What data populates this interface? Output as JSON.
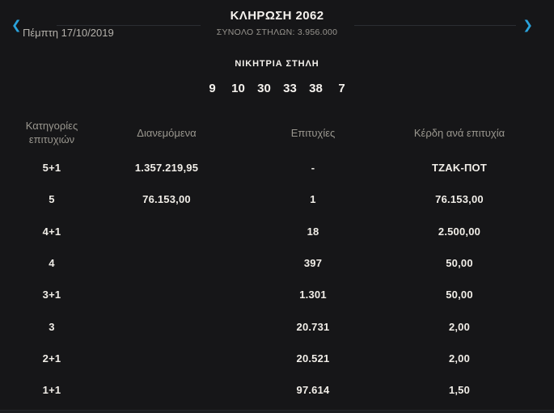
{
  "header": {
    "title": "ΚΛΗΡΩΣΗ 2062",
    "total_columns": "ΣΥΝΟΛΟ ΣΤΗΛΩΝ: 3.956.000",
    "date": "Πέμπτη 17/10/2019"
  },
  "nav": {
    "prev_icon": "❮",
    "next_icon": "❯"
  },
  "winning": {
    "label": "ΝΙΚΗΤΡΙΑ ΣΤΗΛΗ",
    "numbers": [
      "9",
      "10",
      "30",
      "33",
      "38"
    ],
    "bonus": "7"
  },
  "table": {
    "headers": {
      "category_line1": "Κατηγορίες",
      "category_line2": "επιτυχιών",
      "distributed": "Διανεμόμενα",
      "wins": "Επιτυχίες",
      "prize_per_win": "Κέρδη ανά επιτυχία"
    },
    "rows": [
      {
        "category": "5+1",
        "distributed": "1.357.219,95",
        "wins": "-",
        "prize": "ΤΖΑΚ-ΠΟΤ"
      },
      {
        "category": "5",
        "distributed": "76.153,00",
        "wins": "1",
        "prize": "76.153,00"
      },
      {
        "category": "4+1",
        "distributed": "",
        "wins": "18",
        "prize": "2.500,00"
      },
      {
        "category": "4",
        "distributed": "",
        "wins": "397",
        "prize": "50,00"
      },
      {
        "category": "3+1",
        "distributed": "",
        "wins": "1.301",
        "prize": "50,00"
      },
      {
        "category": "3",
        "distributed": "",
        "wins": "20.731",
        "prize": "2,00"
      },
      {
        "category": "2+1",
        "distributed": "",
        "wins": "20.521",
        "prize": "2,00"
      },
      {
        "category": "1+1",
        "distributed": "",
        "wins": "97.614",
        "prize": "1,50"
      }
    ]
  },
  "colors": {
    "accent": "#2aa3dc",
    "background": "#161618",
    "text_primary": "#f1eee8",
    "text_secondary": "#9a978f"
  }
}
